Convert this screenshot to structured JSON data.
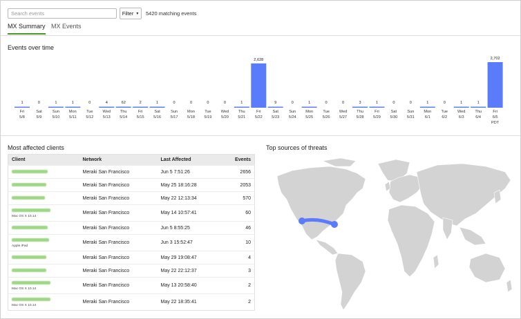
{
  "search": {
    "placeholder": "Search events"
  },
  "filter": {
    "label": "Filter"
  },
  "match_count": "5420 matching events",
  "tabs": [
    {
      "label": "MX Summary",
      "active": true
    },
    {
      "label": "MX Events",
      "active": false
    }
  ],
  "events_over_time": {
    "title": "Events over time"
  },
  "chart_data": {
    "type": "bar",
    "title": "Events over time",
    "categories": [
      "Fri 5/8",
      "Sat 5/9",
      "Sun 5/10",
      "Mon 5/11",
      "Tue 5/12",
      "Wed 5/13",
      "Thu 5/14",
      "Fri 5/15",
      "Sat 5/16",
      "Sun 5/17",
      "Mon 5/18",
      "Tue 5/19",
      "Wed 5/20",
      "Thu 5/21",
      "Fri 5/22",
      "Sat 5/23",
      "Sun 5/24",
      "Mon 5/25",
      "Tue 5/26",
      "Wed 5/27",
      "Thu 5/28",
      "Fri 5/29",
      "Sat 5/30",
      "Sun 5/31",
      "Mon 6/1",
      "Tue 6/2",
      "Wed 6/3",
      "Thu 6/4",
      "Fri 6/5 PDT"
    ],
    "day_labels": [
      "Fri",
      "Sat",
      "Sun",
      "Mon",
      "Tue",
      "Wed",
      "Thu",
      "Fri",
      "Sat",
      "Sun",
      "Mon",
      "Tue",
      "Wed",
      "Thu",
      "Fri",
      "Sat",
      "Sun",
      "Mon",
      "Tue",
      "Wed",
      "Thu",
      "Fri",
      "Sat",
      "Sun",
      "Mon",
      "Tue",
      "Wed",
      "Thu",
      "Fri"
    ],
    "date_labels": [
      "5/8",
      "5/9",
      "5/10",
      "5/11",
      "5/12",
      "5/13",
      "5/14",
      "5/15",
      "5/16",
      "5/17",
      "5/18",
      "5/19",
      "5/20",
      "5/21",
      "5/22",
      "5/23",
      "5/24",
      "5/25",
      "5/26",
      "5/27",
      "5/28",
      "5/29",
      "5/30",
      "5/31",
      "6/1",
      "6/2",
      "6/3",
      "6/4",
      "6/5"
    ],
    "tz_label": "PDT",
    "values": [
      1,
      0,
      1,
      1,
      0,
      4,
      62,
      2,
      1,
      0,
      0,
      0,
      0,
      1,
      2628,
      9,
      0,
      1,
      0,
      0,
      3,
      1,
      0,
      0,
      1,
      0,
      1,
      1,
      2702
    ],
    "value_labels": [
      "1",
      "0",
      "1",
      "1",
      "0",
      "4",
      "62",
      "2",
      "1",
      "0",
      "0",
      "0",
      "0",
      "1",
      "2,628",
      "9",
      "0",
      "1",
      "0",
      "0",
      "3",
      "1",
      "0",
      "0",
      "1",
      "0",
      "1",
      "1",
      "2,702"
    ],
    "color": "#5b7cfa",
    "ylim": [
      0,
      2702
    ]
  },
  "clients": {
    "title": "Most affected clients",
    "columns": [
      "Client",
      "Network",
      "Last Affected",
      "Events"
    ],
    "rows": [
      {
        "sub": "",
        "network": "Meraki San Francisco",
        "last": "Jun 5 7:51:26",
        "events": "2656"
      },
      {
        "sub": "",
        "network": "Meraki San Francisco",
        "last": "May 25 18:16:28",
        "events": "2053"
      },
      {
        "sub": "",
        "network": "Meraki San Francisco",
        "last": "May 22 12:13:34",
        "events": "570"
      },
      {
        "sub": "Mac OS X 10.14",
        "network": "Meraki San Francisco",
        "last": "May 14 10:57:41",
        "events": "60"
      },
      {
        "sub": "",
        "network": "Meraki San Francisco",
        "last": "Jun 5 8:55:25",
        "events": "46"
      },
      {
        "sub": "Apple iPad",
        "network": "Meraki San Francisco",
        "last": "Jun 3 15:52:47",
        "events": "10"
      },
      {
        "sub": "",
        "network": "Meraki San Francisco",
        "last": "May 29 19:08:47",
        "events": "4"
      },
      {
        "sub": "",
        "network": "Meraki San Francisco",
        "last": "May 22 22:12:37",
        "events": "3"
      },
      {
        "sub": "Mac OS X 10.14",
        "network": "Meraki San Francisco",
        "last": "May 13 20:58:40",
        "events": "2"
      },
      {
        "sub": "Mac OS X 10.14",
        "network": "Meraki San Francisco",
        "last": "May 22 18:35:41",
        "events": "2"
      }
    ]
  },
  "threats": {
    "title": "Top sources of threats"
  }
}
